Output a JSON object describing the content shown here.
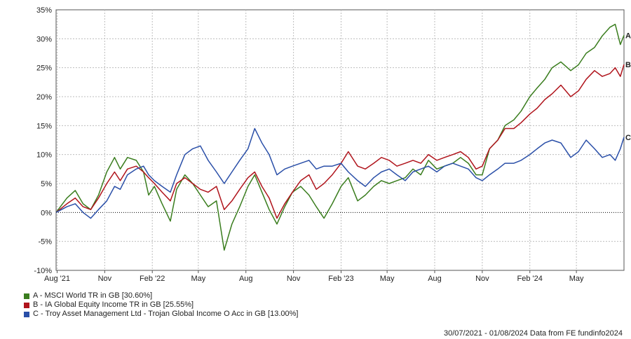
{
  "chart_data": {
    "type": "line",
    "ylim": [
      -10,
      35
    ],
    "y_ticks": [
      -10,
      -5,
      0,
      5,
      10,
      15,
      20,
      25,
      30,
      35
    ],
    "y_tick_labels": [
      "-10%",
      "-5%",
      "0%",
      "5%",
      "10%",
      "15%",
      "20%",
      "25%",
      "30%",
      "35%"
    ],
    "x_range": [
      "2021-07-30",
      "2024-08-01"
    ],
    "x_ticks": [
      {
        "date": "2021-08-01",
        "label": "Aug '21"
      },
      {
        "date": "2021-11-01",
        "label": "Nov"
      },
      {
        "date": "2022-02-01",
        "label": "Feb '22"
      },
      {
        "date": "2022-05-01",
        "label": "May"
      },
      {
        "date": "2022-08-01",
        "label": "Aug"
      },
      {
        "date": "2022-11-01",
        "label": "Nov"
      },
      {
        "date": "2023-02-01",
        "label": "Feb '23"
      },
      {
        "date": "2023-05-01",
        "label": "May"
      },
      {
        "date": "2023-08-01",
        "label": "Aug"
      },
      {
        "date": "2023-11-01",
        "label": "Nov"
      },
      {
        "date": "2024-02-01",
        "label": "Feb '24"
      },
      {
        "date": "2024-05-01",
        "label": "May"
      }
    ],
    "grid": true,
    "zero_line": "dotted",
    "legend_position": "bottom-left",
    "series": [
      {
        "name": "A - MSCI World TR in GB [30.60%]",
        "end_label": "A",
        "color": "#3a7d1e",
        "points": [
          [
            "2021-07-30",
            0
          ],
          [
            "2021-08-20",
            2.5
          ],
          [
            "2021-09-05",
            3.8
          ],
          [
            "2021-09-20",
            1.5
          ],
          [
            "2021-10-05",
            0.5
          ],
          [
            "2021-10-20",
            3
          ],
          [
            "2021-11-05",
            7
          ],
          [
            "2021-11-20",
            9.5
          ],
          [
            "2021-12-01",
            7.5
          ],
          [
            "2021-12-15",
            9.5
          ],
          [
            "2022-01-01",
            9
          ],
          [
            "2022-01-15",
            7
          ],
          [
            "2022-01-25",
            3
          ],
          [
            "2022-02-05",
            4.5
          ],
          [
            "2022-02-20",
            1.5
          ],
          [
            "2022-03-08",
            -1.5
          ],
          [
            "2022-03-20",
            4
          ],
          [
            "2022-04-05",
            6.5
          ],
          [
            "2022-04-20",
            5
          ],
          [
            "2022-05-05",
            3
          ],
          [
            "2022-05-20",
            1
          ],
          [
            "2022-06-05",
            2
          ],
          [
            "2022-06-20",
            -6.5
          ],
          [
            "2022-07-05",
            -2
          ],
          [
            "2022-07-20",
            1
          ],
          [
            "2022-08-05",
            4.5
          ],
          [
            "2022-08-18",
            6.5
          ],
          [
            "2022-09-01",
            3.5
          ],
          [
            "2022-09-15",
            0.5
          ],
          [
            "2022-09-30",
            -2
          ],
          [
            "2022-10-15",
            1
          ],
          [
            "2022-10-30",
            3.5
          ],
          [
            "2022-11-15",
            4.5
          ],
          [
            "2022-12-01",
            3
          ],
          [
            "2022-12-15",
            1
          ],
          [
            "2022-12-30",
            -1
          ],
          [
            "2023-01-15",
            1.5
          ],
          [
            "2023-02-01",
            4.5
          ],
          [
            "2023-02-15",
            6
          ],
          [
            "2023-03-05",
            2
          ],
          [
            "2023-03-20",
            3
          ],
          [
            "2023-04-05",
            4.5
          ],
          [
            "2023-04-20",
            5.5
          ],
          [
            "2023-05-05",
            5
          ],
          [
            "2023-05-20",
            5.5
          ],
          [
            "2023-06-05",
            6
          ],
          [
            "2023-06-20",
            7.5
          ],
          [
            "2023-07-05",
            6.5
          ],
          [
            "2023-07-20",
            9
          ],
          [
            "2023-08-05",
            7.5
          ],
          [
            "2023-08-20",
            8
          ],
          [
            "2023-09-05",
            8.5
          ],
          [
            "2023-09-20",
            9.5
          ],
          [
            "2023-10-05",
            8.5
          ],
          [
            "2023-10-20",
            6.5
          ],
          [
            "2023-11-01",
            6.5
          ],
          [
            "2023-11-15",
            11
          ],
          [
            "2023-12-01",
            12.5
          ],
          [
            "2023-12-15",
            15
          ],
          [
            "2024-01-01",
            16
          ],
          [
            "2024-01-15",
            17.5
          ],
          [
            "2024-02-01",
            20
          ],
          [
            "2024-02-15",
            21.5
          ],
          [
            "2024-03-01",
            23
          ],
          [
            "2024-03-15",
            25
          ],
          [
            "2024-04-01",
            26
          ],
          [
            "2024-04-20",
            24.5
          ],
          [
            "2024-05-05",
            25.5
          ],
          [
            "2024-05-20",
            27.5
          ],
          [
            "2024-06-05",
            28.5
          ],
          [
            "2024-06-20",
            30.5
          ],
          [
            "2024-07-05",
            32
          ],
          [
            "2024-07-15",
            32.5
          ],
          [
            "2024-07-25",
            29
          ],
          [
            "2024-08-01",
            30.6
          ]
        ]
      },
      {
        "name": "B - IA Global Equity Income TR in GB [25.55%]",
        "end_label": "B",
        "color": "#b0141c",
        "points": [
          [
            "2021-07-30",
            0
          ],
          [
            "2021-08-20",
            1.5
          ],
          [
            "2021-09-05",
            2.5
          ],
          [
            "2021-09-20",
            1
          ],
          [
            "2021-10-05",
            0.5
          ],
          [
            "2021-10-20",
            2.5
          ],
          [
            "2021-11-05",
            5
          ],
          [
            "2021-11-20",
            7
          ],
          [
            "2021-12-01",
            5.5
          ],
          [
            "2021-12-15",
            7.5
          ],
          [
            "2022-01-01",
            8
          ],
          [
            "2022-01-15",
            7
          ],
          [
            "2022-01-25",
            6
          ],
          [
            "2022-02-05",
            5
          ],
          [
            "2022-02-20",
            3.5
          ],
          [
            "2022-03-08",
            2
          ],
          [
            "2022-03-20",
            5
          ],
          [
            "2022-04-05",
            6
          ],
          [
            "2022-04-20",
            5
          ],
          [
            "2022-05-05",
            4
          ],
          [
            "2022-05-20",
            3.5
          ],
          [
            "2022-06-05",
            4.5
          ],
          [
            "2022-06-20",
            0.5
          ],
          [
            "2022-07-05",
            2
          ],
          [
            "2022-07-20",
            4
          ],
          [
            "2022-08-05",
            6
          ],
          [
            "2022-08-18",
            7
          ],
          [
            "2022-09-01",
            4.5
          ],
          [
            "2022-09-15",
            2.5
          ],
          [
            "2022-09-30",
            -1
          ],
          [
            "2022-10-15",
            1.5
          ],
          [
            "2022-10-30",
            3.5
          ],
          [
            "2022-11-15",
            5.5
          ],
          [
            "2022-12-01",
            6.5
          ],
          [
            "2022-12-15",
            4
          ],
          [
            "2022-12-30",
            5
          ],
          [
            "2023-01-15",
            6.5
          ],
          [
            "2023-02-01",
            8.5
          ],
          [
            "2023-02-15",
            10.5
          ],
          [
            "2023-03-05",
            8
          ],
          [
            "2023-03-20",
            7.5
          ],
          [
            "2023-04-05",
            8.5
          ],
          [
            "2023-04-20",
            9.5
          ],
          [
            "2023-05-05",
            9
          ],
          [
            "2023-05-20",
            8
          ],
          [
            "2023-06-05",
            8.5
          ],
          [
            "2023-06-20",
            9
          ],
          [
            "2023-07-05",
            8.5
          ],
          [
            "2023-07-20",
            10
          ],
          [
            "2023-08-05",
            9
          ],
          [
            "2023-08-20",
            9.5
          ],
          [
            "2023-09-05",
            10
          ],
          [
            "2023-09-20",
            10.5
          ],
          [
            "2023-10-05",
            9.5
          ],
          [
            "2023-10-20",
            7.5
          ],
          [
            "2023-11-01",
            8
          ],
          [
            "2023-11-15",
            11
          ],
          [
            "2023-12-01",
            12.5
          ],
          [
            "2023-12-15",
            14.5
          ],
          [
            "2024-01-01",
            14.5
          ],
          [
            "2024-01-15",
            15.5
          ],
          [
            "2024-02-01",
            17
          ],
          [
            "2024-02-15",
            18
          ],
          [
            "2024-03-01",
            19.5
          ],
          [
            "2024-03-15",
            20.5
          ],
          [
            "2024-04-01",
            22
          ],
          [
            "2024-04-20",
            20
          ],
          [
            "2024-05-05",
            21
          ],
          [
            "2024-05-20",
            23
          ],
          [
            "2024-06-05",
            24.5
          ],
          [
            "2024-06-20",
            23.5
          ],
          [
            "2024-07-05",
            24
          ],
          [
            "2024-07-15",
            25
          ],
          [
            "2024-07-25",
            23.5
          ],
          [
            "2024-08-01",
            25.55
          ]
        ]
      },
      {
        "name": "C - Troy Asset Management Ltd - Trojan Global Income O Acc in GB [13.00%]",
        "end_label": "C",
        "color": "#2a4fa8",
        "points": [
          [
            "2021-07-30",
            0
          ],
          [
            "2021-08-20",
            1
          ],
          [
            "2021-09-05",
            1.5
          ],
          [
            "2021-09-20",
            0
          ],
          [
            "2021-10-05",
            -1
          ],
          [
            "2021-10-20",
            0.5
          ],
          [
            "2021-11-05",
            2
          ],
          [
            "2021-11-20",
            4.5
          ],
          [
            "2021-12-01",
            4
          ],
          [
            "2021-12-15",
            6.5
          ],
          [
            "2022-01-01",
            7.5
          ],
          [
            "2022-01-15",
            8
          ],
          [
            "2022-01-25",
            6.5
          ],
          [
            "2022-02-05",
            5.5
          ],
          [
            "2022-02-20",
            4.5
          ],
          [
            "2022-03-08",
            3.5
          ],
          [
            "2022-03-20",
            6.5
          ],
          [
            "2022-04-05",
            10
          ],
          [
            "2022-04-20",
            11
          ],
          [
            "2022-05-05",
            11.5
          ],
          [
            "2022-05-20",
            9
          ],
          [
            "2022-06-05",
            7
          ],
          [
            "2022-06-20",
            5
          ],
          [
            "2022-07-05",
            7
          ],
          [
            "2022-07-20",
            9
          ],
          [
            "2022-08-05",
            11
          ],
          [
            "2022-08-18",
            14.5
          ],
          [
            "2022-09-01",
            12
          ],
          [
            "2022-09-15",
            10
          ],
          [
            "2022-09-30",
            6.5
          ],
          [
            "2022-10-15",
            7.5
          ],
          [
            "2022-10-30",
            8
          ],
          [
            "2022-11-15",
            8.5
          ],
          [
            "2022-12-01",
            9
          ],
          [
            "2022-12-15",
            7.5
          ],
          [
            "2022-12-30",
            8
          ],
          [
            "2023-01-15",
            8
          ],
          [
            "2023-02-01",
            8.5
          ],
          [
            "2023-02-15",
            7
          ],
          [
            "2023-03-05",
            5.5
          ],
          [
            "2023-03-20",
            4.5
          ],
          [
            "2023-04-05",
            6
          ],
          [
            "2023-04-20",
            7
          ],
          [
            "2023-05-05",
            7.5
          ],
          [
            "2023-05-20",
            6.5
          ],
          [
            "2023-06-05",
            5.5
          ],
          [
            "2023-06-20",
            7
          ],
          [
            "2023-07-05",
            7.5
          ],
          [
            "2023-07-20",
            8
          ],
          [
            "2023-08-05",
            7
          ],
          [
            "2023-08-20",
            8
          ],
          [
            "2023-09-05",
            8.5
          ],
          [
            "2023-09-20",
            8
          ],
          [
            "2023-10-05",
            7.5
          ],
          [
            "2023-10-20",
            6
          ],
          [
            "2023-11-01",
            5.5
          ],
          [
            "2023-11-15",
            6.5
          ],
          [
            "2023-12-01",
            7.5
          ],
          [
            "2023-12-15",
            8.5
          ],
          [
            "2024-01-01",
            8.5
          ],
          [
            "2024-01-15",
            9
          ],
          [
            "2024-02-01",
            10
          ],
          [
            "2024-02-15",
            11
          ],
          [
            "2024-03-01",
            12
          ],
          [
            "2024-03-15",
            12.5
          ],
          [
            "2024-04-01",
            12
          ],
          [
            "2024-04-20",
            9.5
          ],
          [
            "2024-05-05",
            10.5
          ],
          [
            "2024-05-20",
            12.5
          ],
          [
            "2024-06-05",
            11
          ],
          [
            "2024-06-20",
            9.5
          ],
          [
            "2024-07-05",
            10
          ],
          [
            "2024-07-15",
            9
          ],
          [
            "2024-07-25",
            11
          ],
          [
            "2024-08-01",
            13.0
          ]
        ]
      }
    ]
  },
  "legend": {
    "items": [
      {
        "text": "A - MSCI World TR in GB [30.60%]",
        "color": "#3a7d1e"
      },
      {
        "text": "B - IA Global Equity Income TR in GB [25.55%]",
        "color": "#b0141c"
      },
      {
        "text": "C - Troy Asset Management Ltd - Trojan Global Income O Acc in GB [13.00%]",
        "color": "#2a4fa8"
      }
    ]
  },
  "footer": {
    "source": "30/07/2021 - 01/08/2024 Data from FE fundinfo2024"
  }
}
